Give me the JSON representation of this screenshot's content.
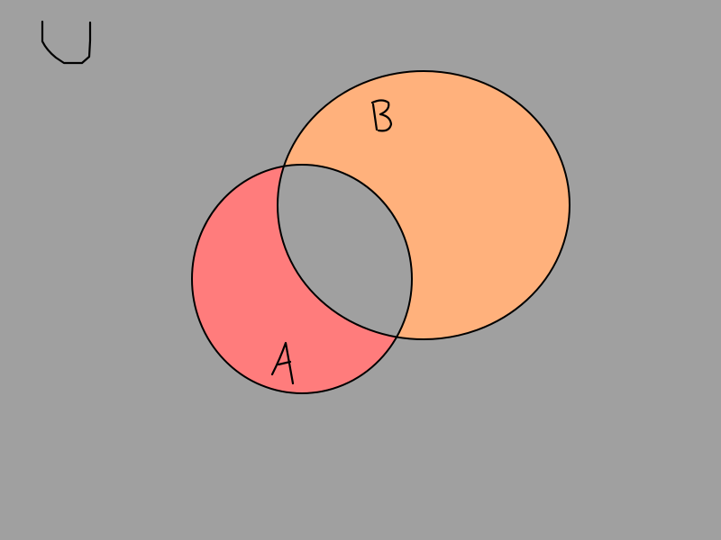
{
  "diagram": {
    "universe_label": "U",
    "sets": [
      {
        "label": "A",
        "fill": "#ff7c7c",
        "shaded": "only-A"
      },
      {
        "label": "B",
        "fill": "#ffb17c",
        "shaded": "only-B"
      }
    ],
    "intersection_fill": "#a0a0a0",
    "background": "#a0a0a0",
    "outline_color": "#000000"
  }
}
